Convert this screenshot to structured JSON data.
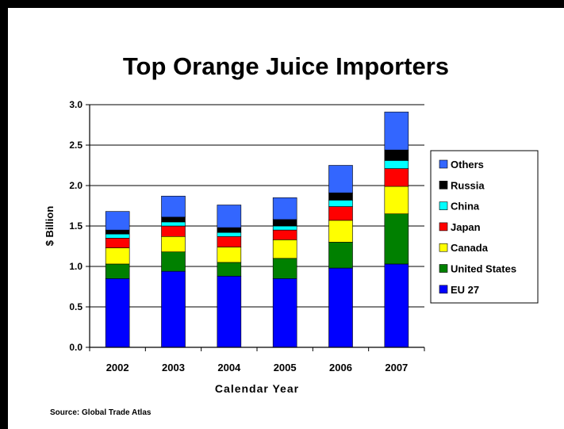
{
  "slide": {
    "title": "Top Orange Juice Importers",
    "source": "Source:  Global Trade Atlas"
  },
  "chart_data": {
    "type": "bar",
    "stacked": true,
    "title": "Top Orange Juice Importers",
    "xlabel": "Calendar Year",
    "ylabel": "$ Billion",
    "ylim": [
      0,
      3.0
    ],
    "yticks": [
      0,
      0.5,
      1.0,
      1.5,
      2.0,
      2.5,
      3.0
    ],
    "ytick_labels": [
      "0.0",
      "0.5",
      "1.0",
      "1.5",
      "2.0",
      "2.5",
      "3.0"
    ],
    "grid": true,
    "legend_position": "right",
    "categories": [
      "2002",
      "2003",
      "2004",
      "2005",
      "2006",
      "2007"
    ],
    "series": [
      {
        "name": "EU 27",
        "color": "#0000FF",
        "values": [
          0.85,
          0.94,
          0.88,
          0.85,
          0.98,
          1.03
        ]
      },
      {
        "name": "United States",
        "color": "#008000",
        "values": [
          0.18,
          0.24,
          0.17,
          0.25,
          0.32,
          0.62
        ]
      },
      {
        "name": "Canada",
        "color": "#FFFF00",
        "values": [
          0.2,
          0.19,
          0.19,
          0.23,
          0.27,
          0.34
        ]
      },
      {
        "name": "Japan",
        "color": "#FF0000",
        "values": [
          0.12,
          0.13,
          0.13,
          0.12,
          0.17,
          0.22
        ]
      },
      {
        "name": "China",
        "color": "#00FFFF",
        "values": [
          0.05,
          0.05,
          0.05,
          0.05,
          0.08,
          0.1
        ]
      },
      {
        "name": "Russia",
        "color": "#000000",
        "values": [
          0.05,
          0.06,
          0.06,
          0.08,
          0.09,
          0.13
        ]
      },
      {
        "name": "Others",
        "color": "#3366FF",
        "values": [
          0.23,
          0.26,
          0.28,
          0.27,
          0.34,
          0.47
        ]
      }
    ]
  }
}
